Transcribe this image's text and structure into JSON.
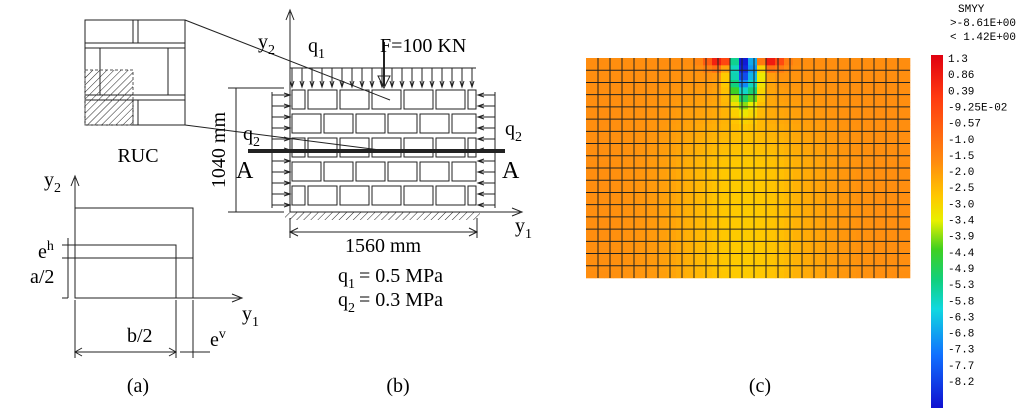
{
  "panel_a": {
    "ruc_label": "RUC",
    "y2": {
      "base": "y",
      "sub": "2"
    },
    "y1": {
      "base": "y",
      "sub": "1"
    },
    "eh": {
      "base": "e",
      "sup": "h"
    },
    "ev": {
      "base": "e",
      "sup": "v"
    },
    "a_half": "a/2",
    "b_half": "b/2",
    "caption": "(a)"
  },
  "panel_b": {
    "y2": {
      "base": "y",
      "sub": "2"
    },
    "y1": {
      "base": "y",
      "sub": "1"
    },
    "q1": {
      "base": "q",
      "sub": "1"
    },
    "force": "F=100 KN",
    "height": "1040 mm",
    "width": "1560 mm",
    "q2_left": {
      "base": "q",
      "sub": "2"
    },
    "q2_right": {
      "base": "q",
      "sub": "2"
    },
    "section_left": "A",
    "section_right": "A",
    "q1_value": {
      "base": "q",
      "sub": "1",
      "rest": "= 0.5 MPa"
    },
    "q2_value": {
      "base": "q",
      "sub": "2",
      "rest": "= 0.3 MPa"
    },
    "caption": "(b)"
  },
  "panel_c": {
    "legend_title": "SMYY",
    "legend_max": ">-8.61E+00",
    "legend_min": "< 1.42E+00",
    "legend_labels": [
      "1.3",
      "0.86",
      "0.39",
      "-9.25E-02",
      "-0.57",
      "-1.0",
      "-1.5",
      "-2.0",
      "-2.5",
      "-3.0",
      "-3.4",
      "-3.9",
      "-4.4",
      "-4.9",
      "-5.3",
      "-5.8",
      "-6.3",
      "-6.8",
      "-7.3",
      "-7.7",
      "-8.2"
    ],
    "caption": "(c)"
  }
}
